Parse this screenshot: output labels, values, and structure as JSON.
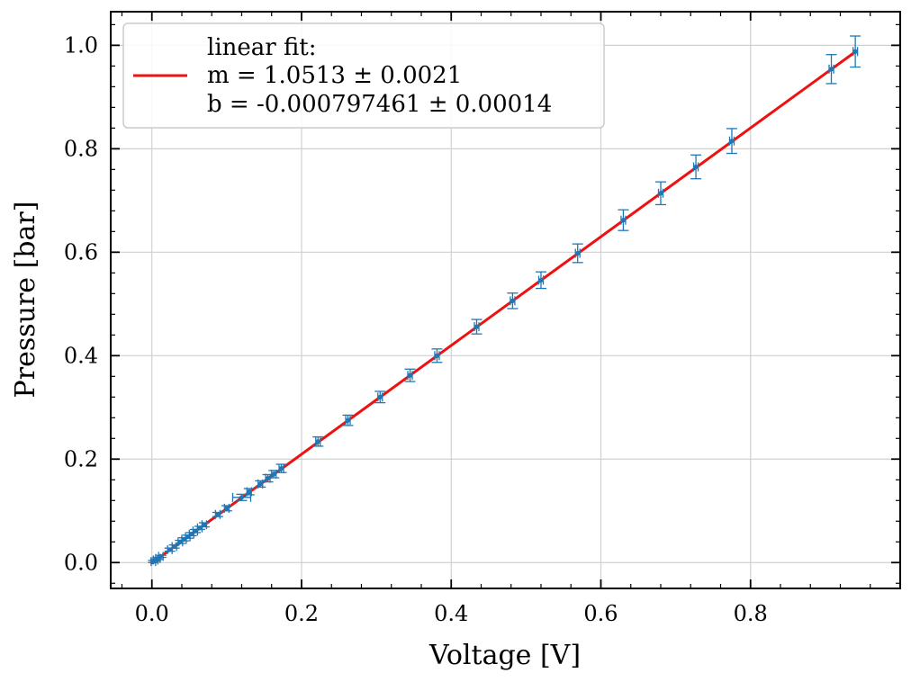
{
  "chart_data": {
    "type": "scatter",
    "xlabel": "Voltage [V]",
    "ylabel": "Pressure [bar]",
    "xlim": [
      -0.055,
      1.0
    ],
    "ylim": [
      -0.05,
      1.065
    ],
    "xticks": [
      "0.0",
      "0.2",
      "0.4",
      "0.6",
      "0.8"
    ],
    "yticks": [
      "0.0",
      "0.2",
      "0.4",
      "0.6",
      "0.8",
      "1.0"
    ],
    "grid": true,
    "legend_placement": "top-left",
    "series": [
      {
        "name": "linear fit:",
        "kind": "line",
        "color": "#ee1111",
        "x": [
          0.0,
          0.94
        ],
        "y": [
          -0.0008,
          0.9874
        ]
      },
      {
        "kind": "errorbar",
        "color": "#1f77b4",
        "x": [
          0.002,
          0.005,
          0.008,
          0.012,
          0.024,
          0.03,
          0.038,
          0.043,
          0.048,
          0.053,
          0.058,
          0.064,
          0.07,
          0.088,
          0.1,
          0.12,
          0.13,
          0.145,
          0.155,
          0.163,
          0.173,
          0.222,
          0.262,
          0.305,
          0.345,
          0.381,
          0.434,
          0.482,
          0.52,
          0.569,
          0.63,
          0.68,
          0.727,
          0.775,
          0.908,
          0.94
        ],
        "y": [
          0.002,
          0.005,
          0.008,
          0.012,
          0.025,
          0.031,
          0.04,
          0.045,
          0.05,
          0.055,
          0.061,
          0.067,
          0.073,
          0.093,
          0.105,
          0.126,
          0.137,
          0.152,
          0.163,
          0.171,
          0.182,
          0.234,
          0.275,
          0.32,
          0.362,
          0.4,
          0.456,
          0.506,
          0.546,
          0.598,
          0.662,
          0.714,
          0.765,
          0.815,
          0.954,
          0.988
        ],
        "yerr": [
          0.002,
          0.002,
          0.002,
          0.002,
          0.003,
          0.003,
          0.003,
          0.003,
          0.003,
          0.003,
          0.003,
          0.003,
          0.004,
          0.004,
          0.005,
          0.006,
          0.006,
          0.006,
          0.007,
          0.007,
          0.008,
          0.009,
          0.01,
          0.011,
          0.012,
          0.013,
          0.014,
          0.015,
          0.016,
          0.018,
          0.02,
          0.022,
          0.023,
          0.024,
          0.028,
          0.03
        ],
        "xerr": [
          0.003,
          0.003,
          0.003,
          0.003,
          0.003,
          0.003,
          0.003,
          0.003,
          0.003,
          0.003,
          0.003,
          0.003,
          0.003,
          0.003,
          0.003,
          0.012,
          0.003,
          0.003,
          0.003,
          0.003,
          0.003,
          0.003,
          0.003,
          0.003,
          0.003,
          0.003,
          0.003,
          0.003,
          0.003,
          0.003,
          0.003,
          0.003,
          0.003,
          0.003,
          0.003,
          0.003
        ]
      }
    ],
    "legend": {
      "lines": [
        "linear fit:",
        "m = 1.0513 ± 0.0021",
        "b = -0.000797461 ± 0.00014"
      ]
    }
  }
}
